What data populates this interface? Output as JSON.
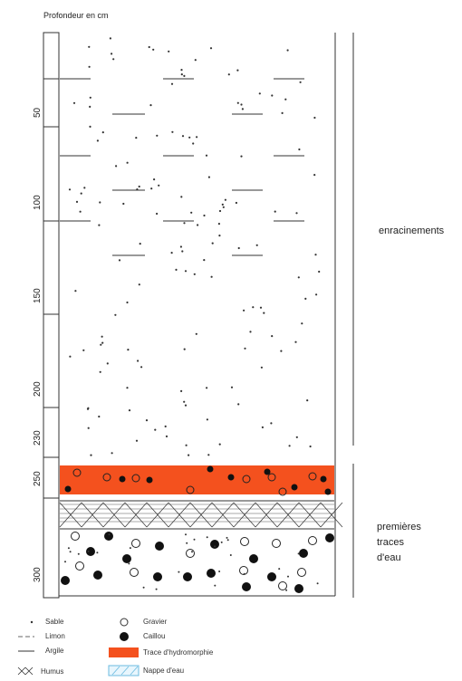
{
  "title": "Profondeur en cm",
  "depth_ticks": [
    "50",
    "100",
    "150",
    "200",
    "230",
    "250",
    "300"
  ],
  "annotations": {
    "roots": "enracinements",
    "water_line1": "premières",
    "water_line2": "traces",
    "water_line3": "d'eau"
  },
  "legend": {
    "sable": "Sable",
    "limon": "Limon",
    "argile": "Argile",
    "humus": "Humus",
    "gravier": "Gravier",
    "caillou": "Caillou",
    "hydromorphie": "Trace d'hydromorphie",
    "nappe": "Nappe d'eau"
  },
  "colors": {
    "hydromorphie": "#f4511e",
    "nappe": "#9fd3ec",
    "line": "#333333"
  }
}
